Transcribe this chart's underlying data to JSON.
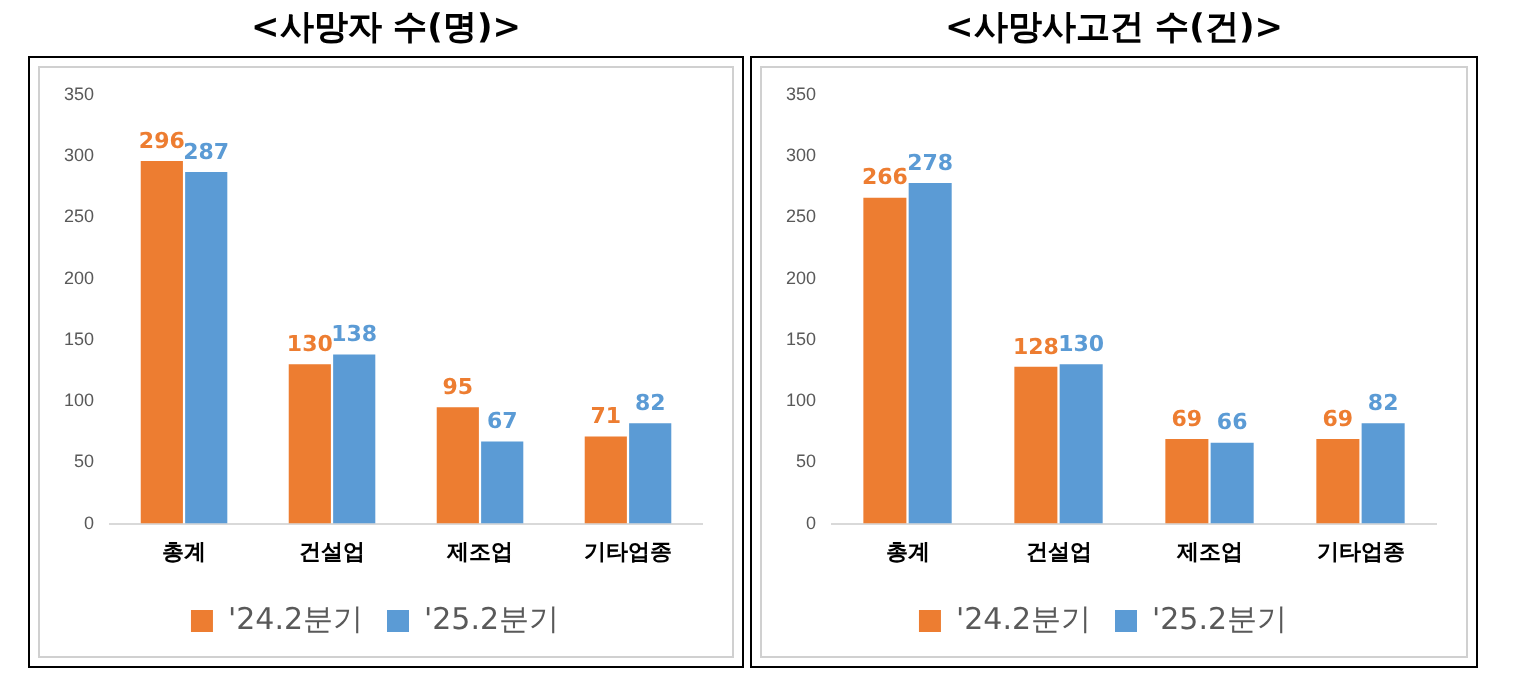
{
  "chart_data": [
    {
      "type": "bar",
      "title": "<사망자 수(명)>",
      "categories": [
        "총계",
        "건설업",
        "제조업",
        "기타업종"
      ],
      "series": [
        {
          "name": "'24.2분기",
          "color": "#ed7d31",
          "values": [
            296,
            130,
            95,
            71
          ]
        },
        {
          "name": "'25.2분기",
          "color": "#5b9bd5",
          "values": [
            287,
            138,
            67,
            82
          ]
        }
      ],
      "ylim": [
        0,
        350
      ],
      "yticks": [
        0,
        50,
        100,
        150,
        200,
        250,
        300,
        350
      ],
      "grid": false,
      "legend": "bottom",
      "data_labels": true
    },
    {
      "type": "bar",
      "title": "<사망사고건 수(건)>",
      "categories": [
        "총계",
        "건설업",
        "제조업",
        "기타업종"
      ],
      "series": [
        {
          "name": "'24.2분기",
          "color": "#ed7d31",
          "values": [
            266,
            128,
            69,
            69
          ]
        },
        {
          "name": "'25.2분기",
          "color": "#5b9bd5",
          "values": [
            278,
            130,
            66,
            82
          ]
        }
      ],
      "ylim": [
        0,
        350
      ],
      "yticks": [
        0,
        50,
        100,
        150,
        200,
        250,
        300,
        350
      ],
      "grid": false,
      "legend": "bottom",
      "data_labels": true
    }
  ]
}
